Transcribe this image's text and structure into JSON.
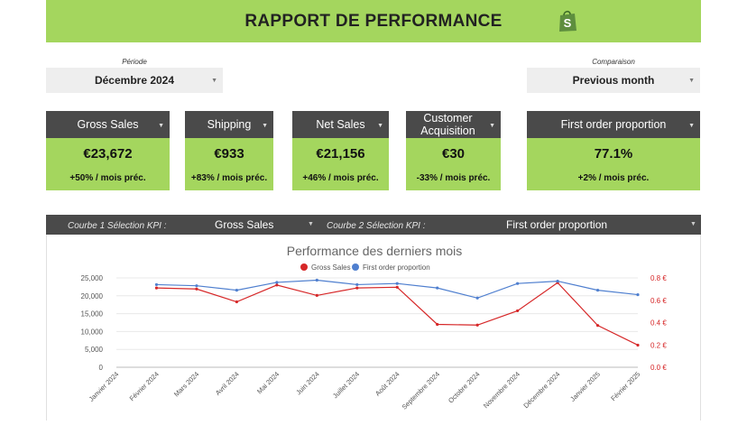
{
  "header": {
    "title": "RAPPORT DE PERFORMANCE",
    "logo_icon": "shopify-bag-icon"
  },
  "filters": {
    "period_label": "Période",
    "period_value": "Décembre 2024",
    "comparison_label": "Comparaison",
    "comparison_value": "Previous month"
  },
  "kpis": [
    {
      "label": "Gross Sales",
      "value": "€23,672",
      "delta": "+50% / mois préc."
    },
    {
      "label": "Shipping",
      "value": "€933",
      "delta": "+83% / mois préc."
    },
    {
      "label": "Net Sales",
      "value": "€21,156",
      "delta": "+46% / mois préc."
    },
    {
      "label": "Customer Acquisition",
      "value": "€30",
      "delta": "-33% / mois préc."
    },
    {
      "label": "First order proportion",
      "value": "77.1%",
      "delta": "+2% / mois préc."
    }
  ],
  "kpi_selector": {
    "curve1_label": "Courbe 1 Sélection KPI :",
    "curve1_value": "Gross Sales",
    "curve2_label": "Courbe 2 Sélection KPI :",
    "curve2_value": "First order proportion"
  },
  "colors": {
    "accent_green": "#a4d65e",
    "dark_header": "#4a4a4a",
    "series_red": "#d62728",
    "series_blue": "#4f7fcf"
  },
  "chart_data": {
    "type": "line",
    "title": "Performance des derniers mois",
    "x": [
      "Janvier 2024",
      "Février 2024",
      "Mars 2024",
      "Avril 2024",
      "Mai 2024",
      "Juin 2024",
      "Juillet 2024",
      "Août 2024",
      "Septembre 2024",
      "Octobre 2024",
      "Novembre 2024",
      "Décembre 2024",
      "Janvier 2025",
      "Février 2025"
    ],
    "series": [
      {
        "name": "Gross Sales",
        "axis": "left",
        "color": "#d62728",
        "values": [
          null,
          22200,
          21900,
          18300,
          23000,
          20100,
          22200,
          22400,
          12000,
          11800,
          15800,
          23672,
          11700,
          6200
        ]
      },
      {
        "name": "First order proportion",
        "axis": "right",
        "color": "#4f7fcf",
        "values": [
          null,
          0.74,
          0.73,
          0.69,
          0.76,
          0.78,
          0.74,
          0.75,
          0.71,
          0.62,
          0.75,
          0.771,
          0.69,
          0.65
        ]
      }
    ],
    "y_left": {
      "ylim": [
        0,
        25000
      ],
      "ticks": [
        "0",
        "5,000",
        "10,000",
        "15,000",
        "20,000",
        "25,000"
      ]
    },
    "y_right": {
      "ylim": [
        0,
        0.8
      ],
      "ticks": [
        "0.0 €",
        "0.2 €",
        "0.4 €",
        "0.6 €",
        "0.8 €"
      ]
    },
    "grid": true,
    "legend": "top-center"
  }
}
